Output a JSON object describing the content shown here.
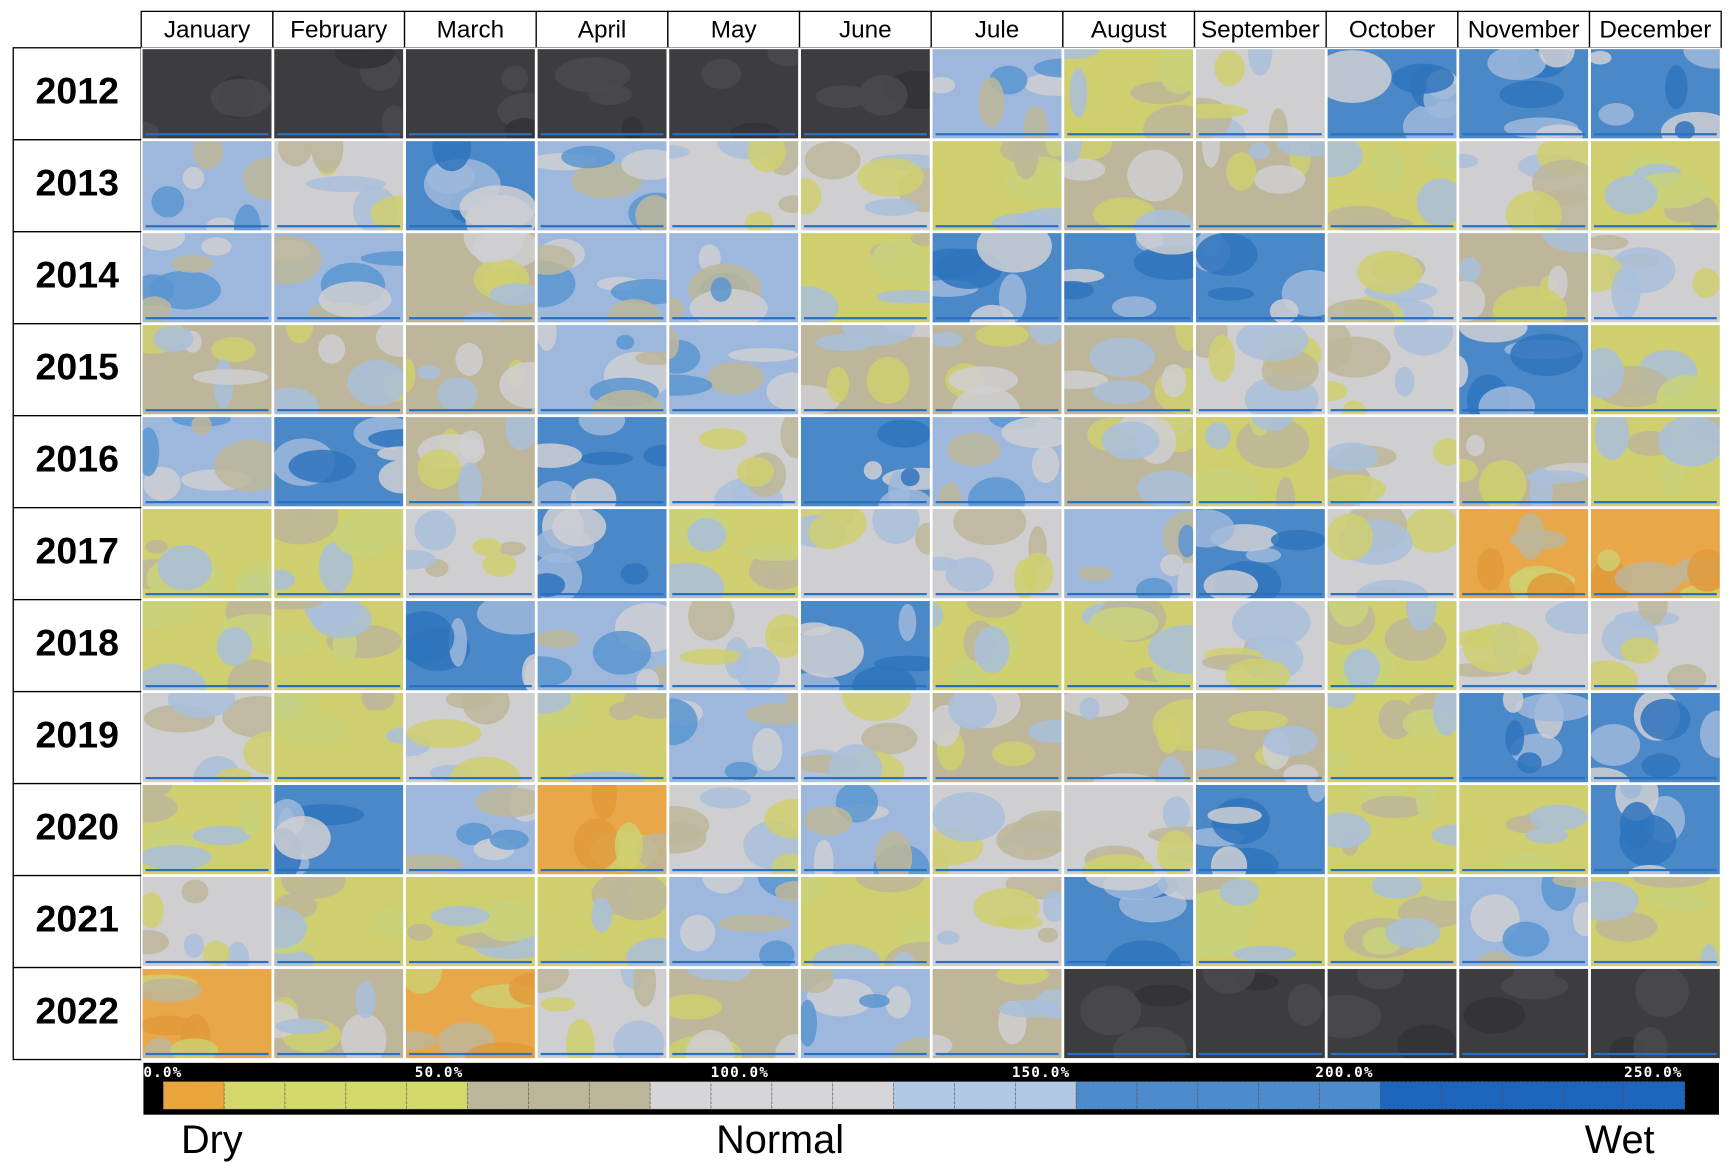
{
  "months": [
    "January",
    "February",
    "March",
    "April",
    "May",
    "June",
    "Jule",
    "August",
    "September",
    "October",
    "November",
    "December"
  ],
  "years": [
    "2012",
    "2013",
    "2014",
    "2015",
    "2016",
    "2017",
    "2018",
    "2019",
    "2020",
    "2021",
    "2022"
  ],
  "colorbar": {
    "labels": [
      "0.0%",
      "50.0%",
      "100.0%",
      "150.0%",
      "200.0%",
      "250.0%"
    ]
  },
  "scale_labels": {
    "dry": "Dry",
    "normal": "Normal",
    "wet": "Wet"
  }
}
